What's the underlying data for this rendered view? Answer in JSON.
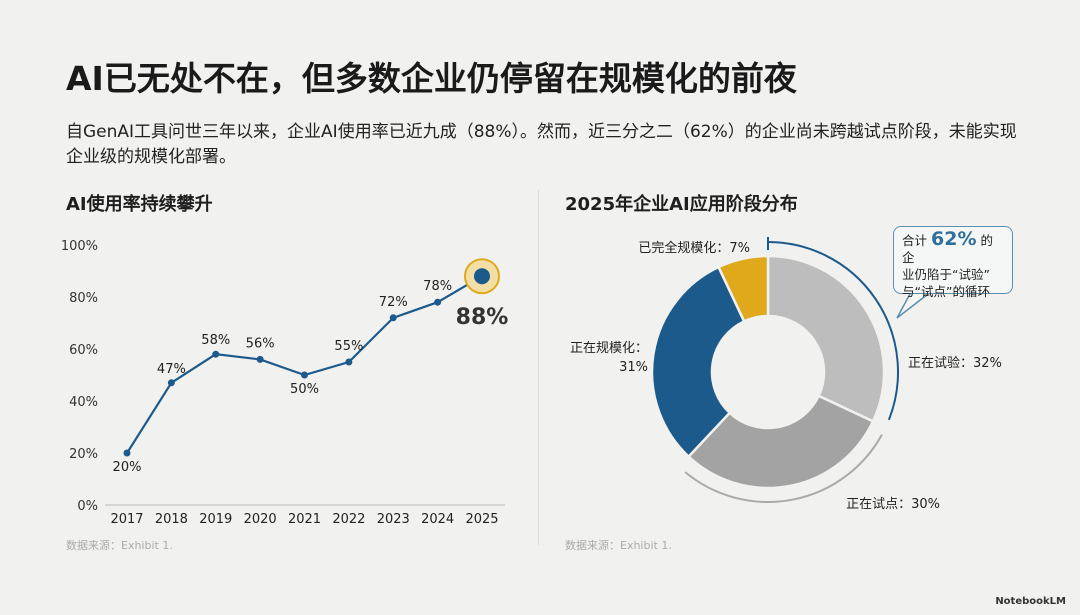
{
  "title": "AI已无处不在，但多数企业仍停留在规模化的前夜",
  "subtitle": "自GenAI工具问世三年以来，企业AI使用率已近九成（88%）。然而，近三分之二（62%）的企业尚未跨越试点阶段，未能实现企业级的规模化部署。",
  "branding": "NotebookLM",
  "chart_data": [
    {
      "type": "line",
      "title": "AI使用率持续攀升",
      "x": [
        "2017",
        "2018",
        "2019",
        "2020",
        "2021",
        "2022",
        "2023",
        "2024",
        "2025"
      ],
      "values": [
        20,
        47,
        58,
        56,
        50,
        55,
        72,
        78,
        88
      ],
      "labels": [
        "20%",
        "47%",
        "58%",
        "56%",
        "50%",
        "55%",
        "72%",
        "78%",
        "88%"
      ],
      "yticks": [
        "0%",
        "20%",
        "40%",
        "60%",
        "80%",
        "100%"
      ],
      "ylim": [
        0,
        100
      ],
      "source": "数据来源：Exhibit 1.",
      "color": "#1d5a8c",
      "highlight_color": "#e0a91c"
    },
    {
      "type": "pie",
      "title": "2025年企业AI应用阶段分布",
      "slices": [
        {
          "name": "正在试验",
          "value": 32,
          "label": "正在试验：32%",
          "color": "#bdbdbd"
        },
        {
          "name": "正在试点",
          "value": 30,
          "label": "正在试点：30%",
          "color": "#a3a3a3"
        },
        {
          "name": "正在规模化",
          "value": 31,
          "label": "正在规模化：",
          "label2": "31%",
          "color": "#1d5a8c"
        },
        {
          "name": "已完全规模化",
          "value": 7,
          "label": "已完全规模化：7%",
          "color": "#e0a91c"
        }
      ],
      "callout": {
        "pre": "合计",
        "value": "62%",
        "post": "的企",
        "line2": "业仍陷于“试验”",
        "line3": "与“试点”的循环"
      },
      "source": "数据来源：Exhibit 1."
    }
  ]
}
